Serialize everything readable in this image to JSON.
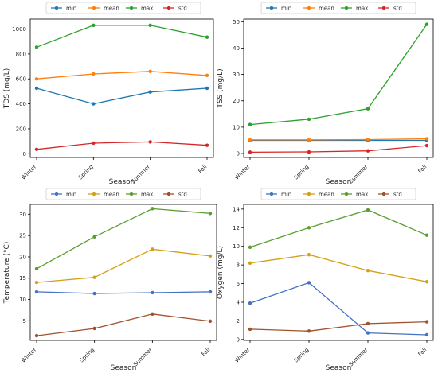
{
  "chart_data": [
    {
      "type": "line",
      "categories": [
        "Winter",
        "Spring",
        "Summer",
        "Fall"
      ],
      "xlabel": "Season",
      "ylabel": "TDS (mg/L)",
      "ylim": [
        -30,
        1080
      ],
      "yticks": [
        0,
        200,
        400,
        600,
        800,
        1000
      ],
      "ytick_labels": [
        "0",
        "200",
        "400",
        "600",
        "800",
        "1000"
      ],
      "legend_position": "top-center",
      "grid": false,
      "series": [
        {
          "name": "min",
          "color": "#1f77b4",
          "values": [
            525,
            400,
            495,
            525
          ]
        },
        {
          "name": "mean",
          "color": "#ff7f0e",
          "values": [
            600,
            640,
            660,
            628
          ]
        },
        {
          "name": "max",
          "color": "#2ca02c",
          "values": [
            855,
            1030,
            1030,
            935
          ]
        },
        {
          "name": "std",
          "color": "#d62728",
          "values": [
            35,
            85,
            95,
            68
          ]
        }
      ]
    },
    {
      "type": "line",
      "categories": [
        "Winter",
        "Spring",
        "Summer",
        "Fall"
      ],
      "xlabel": "Season",
      "ylabel": "TSS (mg/L)",
      "ylim": [
        -1.5,
        51
      ],
      "yticks": [
        0,
        10,
        20,
        30,
        40,
        50
      ],
      "ytick_labels": [
        "0",
        "10",
        "20",
        "30",
        "40",
        "50"
      ],
      "legend_position": "top-center",
      "grid": false,
      "series": [
        {
          "name": "min",
          "color": "#1f77b4",
          "values": [
            5.0,
            5.0,
            5.0,
            5.0
          ]
        },
        {
          "name": "mean",
          "color": "#ff7f0e",
          "values": [
            5.2,
            5.2,
            5.3,
            5.6
          ]
        },
        {
          "name": "max",
          "color": "#2ca02c",
          "values": [
            11,
            13,
            17,
            49
          ]
        },
        {
          "name": "std",
          "color": "#d62728",
          "values": [
            0.5,
            0.6,
            1.0,
            3.0
          ]
        }
      ]
    },
    {
      "type": "line",
      "categories": [
        "Winter",
        "Spring",
        "Summer",
        "Fall"
      ],
      "xlabel": "Season",
      "ylabel": "Temperature (°C)",
      "ylim": [
        0.4,
        32.3
      ],
      "yticks": [
        5,
        10,
        15,
        20,
        25,
        30
      ],
      "ytick_labels": [
        "5",
        "10",
        "15",
        "20",
        "25",
        "30"
      ],
      "legend_position": "top-center",
      "grid": false,
      "series": [
        {
          "name": "min",
          "color": "#4472c4",
          "values": [
            11.8,
            11.4,
            11.6,
            11.8
          ]
        },
        {
          "name": "mean",
          "color": "#d4a017",
          "values": [
            14.0,
            15.2,
            21.8,
            20.2
          ]
        },
        {
          "name": "max",
          "color": "#5a9e2f",
          "values": [
            17.2,
            24.7,
            31.3,
            30.2
          ]
        },
        {
          "name": "std",
          "color": "#a0522d",
          "values": [
            1.5,
            3.2,
            6.6,
            4.9
          ]
        }
      ]
    },
    {
      "type": "line",
      "categories": [
        "Winter",
        "Spring",
        "Summer",
        "Fall"
      ],
      "xlabel": "Season",
      "ylabel": "Oxygen (mg/L)",
      "ylim": [
        -0.1,
        14.5
      ],
      "yticks": [
        0,
        2,
        4,
        6,
        8,
        10,
        12,
        14
      ],
      "ytick_labels": [
        "0",
        "2",
        "4",
        "6",
        "8",
        "10",
        "12",
        "14"
      ],
      "legend_position": "top-center",
      "grid": false,
      "series": [
        {
          "name": "min",
          "color": "#4472c4",
          "values": [
            3.9,
            6.1,
            0.7,
            0.5
          ]
        },
        {
          "name": "mean",
          "color": "#d4a017",
          "values": [
            8.2,
            9.1,
            7.4,
            6.2
          ]
        },
        {
          "name": "max",
          "color": "#5a9e2f",
          "values": [
            9.9,
            12.0,
            13.9,
            11.2
          ]
        },
        {
          "name": "std",
          "color": "#a0522d",
          "values": [
            1.1,
            0.9,
            1.7,
            1.9
          ]
        }
      ]
    }
  ]
}
